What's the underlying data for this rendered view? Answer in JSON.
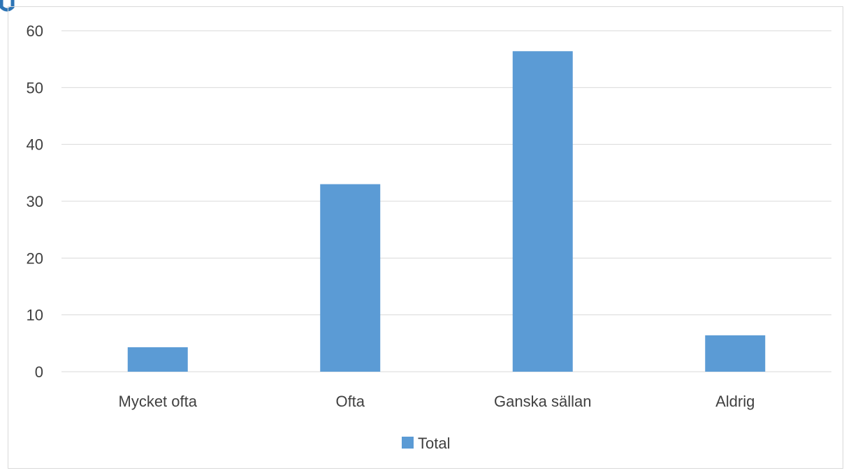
{
  "chart_data": {
    "type": "bar",
    "categories": [
      "Mycket ofta",
      "Ofta",
      "Ganska sällan",
      "Aldrig"
    ],
    "series": [
      {
        "name": "Total",
        "values": [
          4.3,
          33,
          56.4,
          6.4
        ]
      }
    ],
    "ylim": [
      0,
      60
    ],
    "yticks": [
      0,
      10,
      20,
      30,
      40,
      50,
      60
    ],
    "grid": true,
    "legend": "bottom",
    "colors": {
      "bar": "#5b9bd5",
      "grid": "#d9d9d9",
      "axis": "#d9d9d9",
      "text": "#404040",
      "border": "#d9d9d9"
    }
  }
}
